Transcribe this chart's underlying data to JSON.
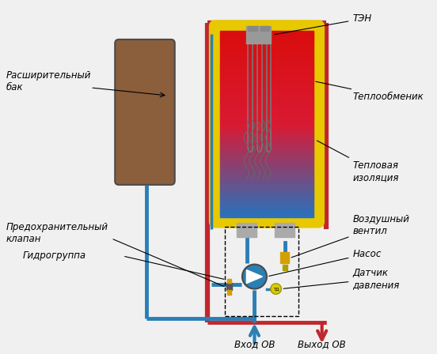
{
  "bg_color": "#f0f0f0",
  "labels": {
    "ten": "ТЭН",
    "teploobm": "Теплообменик",
    "teplovaya": "Тепловая\nизоляция",
    "rassh": "Расширительный\nбак",
    "predokhr": "Предохранительный\nклапан",
    "gidro": "Гидрогруппа",
    "vozdush": "Воздушный\nвентил",
    "nasos": "Насос",
    "datchik": "Датчик\nдавления",
    "vhod": "Вход ОВ",
    "vyhod": "Выход ОВ"
  },
  "colors": {
    "red_pipe": "#c0272d",
    "blue_pipe": "#2a7fb5",
    "yellow": "#e8c800",
    "gray": "#888888",
    "dark_gray": "#4a4a4a",
    "brown": "#8b5e3c",
    "white": "#ffffff",
    "yellow_valve": "#d4a000",
    "light_gray": "#aaaaaa"
  }
}
